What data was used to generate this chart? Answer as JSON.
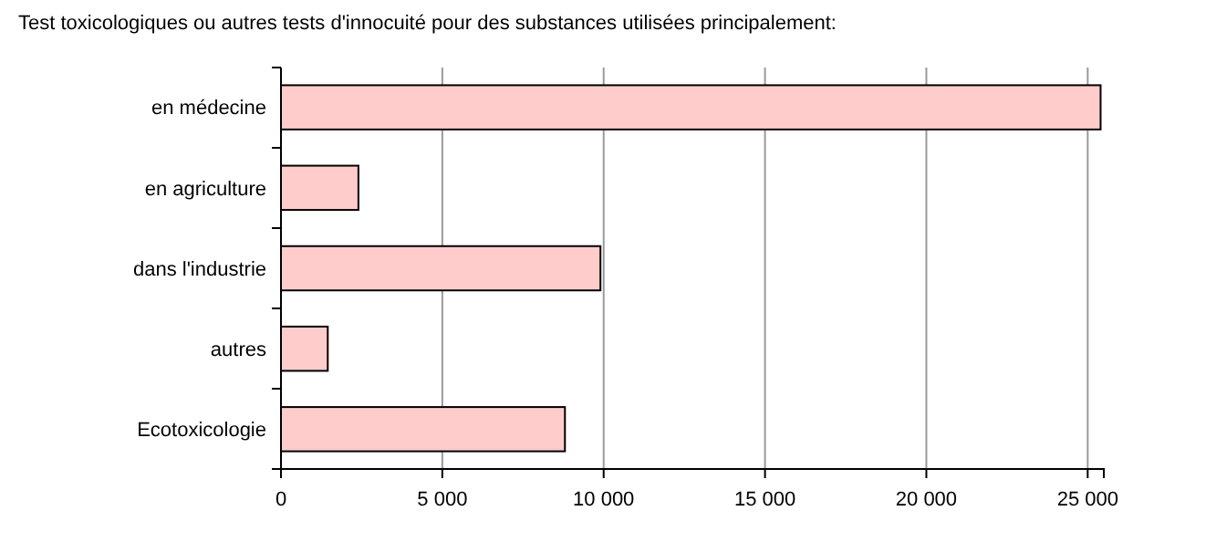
{
  "chart_data": {
    "type": "bar",
    "orientation": "horizontal",
    "title": "Test toxicologiques ou autres tests d'innocuité pour des substances utilisées principalement:",
    "categories": [
      "en médecine",
      "en agriculture",
      "dans l'industrie",
      "autres",
      "Ecotoxicologie"
    ],
    "values": [
      25400,
      2400,
      9900,
      1450,
      8800
    ],
    "color": "#ffcccc",
    "xlim": [
      0,
      25500
    ],
    "xticks": [
      {
        "value": 0,
        "label": "0"
      },
      {
        "value": 5000,
        "label": "5 000"
      },
      {
        "value": 10000,
        "label": "10 000"
      },
      {
        "value": 15000,
        "label": "15 000"
      },
      {
        "value": 20000,
        "label": "20 000"
      },
      {
        "value": 25000,
        "label": "25 000"
      }
    ],
    "grid": "x"
  }
}
